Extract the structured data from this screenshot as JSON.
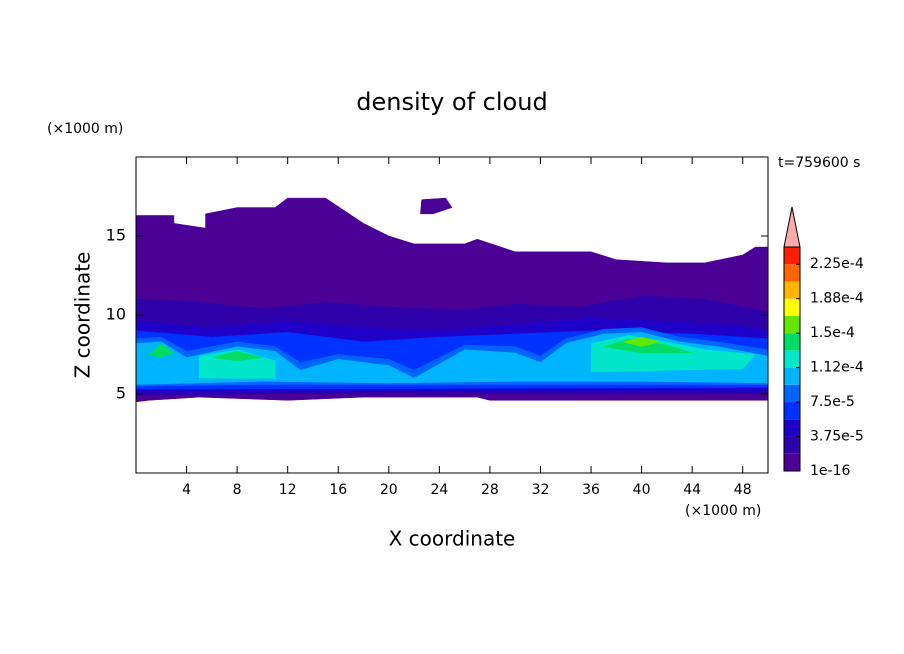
{
  "chart_data": {
    "type": "contour",
    "title": "density of cloud",
    "x_label": "X coordinate",
    "y_label": "Z coordinate",
    "x_unit": "(×1000 m)",
    "y_unit": "(×1000 m)",
    "annotation": "t=759600 s",
    "xlim": [
      0,
      50
    ],
    "ylim": [
      0,
      20
    ],
    "xticks": [
      4,
      8,
      12,
      16,
      20,
      24,
      28,
      32,
      36,
      40,
      44,
      48
    ],
    "yticks": [
      5,
      10,
      15
    ],
    "levels": [
      1e-16,
      1.875e-05,
      3.75e-05,
      5.625e-05,
      7.5e-05,
      9.375e-05,
      0.0001125,
      0.00013125,
      0.00015,
      0.00016875,
      0.0001875,
      0.00020625,
      0.000225,
      0.00024375
    ],
    "colors": [
      "#4b0096",
      "#2d00aa",
      "#1e00c8",
      "#0032ff",
      "#0064ff",
      "#00b4ff",
      "#00e6c8",
      "#00dc64",
      "#64e600",
      "#ffff00",
      "#ffb400",
      "#ff6400",
      "#ff1e00"
    ],
    "extend_color": "#ffaaaa",
    "colorbar_ticks": [
      {
        "value": 1e-16,
        "label": "1e-16"
      },
      {
        "value": 3.75e-05,
        "label": "3.75e-5"
      },
      {
        "value": 7.5e-05,
        "label": "7.5e-5"
      },
      {
        "value": 0.0001125,
        "label": "1.12e-4"
      },
      {
        "value": 0.00015,
        "label": "1.5e-4"
      },
      {
        "value": 0.0001875,
        "label": "1.88e-4"
      },
      {
        "value": 0.000225,
        "label": "2.25e-4"
      }
    ],
    "regions": [
      {
        "value": 1e-16,
        "points": [
          [
            0,
            4.5
          ],
          [
            0,
            16.3
          ],
          [
            3,
            16.3
          ],
          [
            3,
            15.8
          ],
          [
            5.5,
            15.5
          ],
          [
            5.5,
            16.4
          ],
          [
            8,
            16.8
          ],
          [
            11,
            16.8
          ],
          [
            12,
            17.4
          ],
          [
            15,
            17.4
          ],
          [
            18,
            15.8
          ],
          [
            20,
            15
          ],
          [
            22,
            14.5
          ],
          [
            26,
            14.5
          ],
          [
            27,
            14.8
          ],
          [
            30,
            14
          ],
          [
            36,
            14
          ],
          [
            38,
            13.5
          ],
          [
            42,
            13.3
          ],
          [
            45,
            13.3
          ],
          [
            48,
            13.8
          ],
          [
            49,
            14.3
          ],
          [
            50,
            14.3
          ],
          [
            50,
            4.6
          ],
          [
            35,
            4.6
          ],
          [
            28,
            4.6
          ],
          [
            27,
            4.8
          ],
          [
            18,
            4.8
          ],
          [
            12,
            4.6
          ],
          [
            5,
            4.8
          ],
          [
            1,
            4.6
          ]
        ]
      },
      {
        "value": 1e-16,
        "points": [
          [
            22.5,
            16.4
          ],
          [
            22.6,
            17.3
          ],
          [
            24.5,
            17.4
          ],
          [
            25,
            16.8
          ],
          [
            23.5,
            16.4
          ]
        ]
      },
      {
        "value": 1.875e-05,
        "points": [
          [
            0,
            4.9
          ],
          [
            0,
            11
          ],
          [
            5,
            10.8
          ],
          [
            10,
            10.4
          ],
          [
            15,
            10.8
          ],
          [
            20,
            10.5
          ],
          [
            26,
            10.3
          ],
          [
            30,
            10.7
          ],
          [
            35,
            10.5
          ],
          [
            40,
            11.2
          ],
          [
            45,
            11
          ],
          [
            50,
            10.2
          ],
          [
            50,
            5
          ],
          [
            30,
            5
          ],
          [
            20,
            5
          ],
          [
            10,
            5
          ]
        ]
      },
      {
        "value": 3.75e-05,
        "points": [
          [
            0,
            5.1
          ],
          [
            0,
            9.6
          ],
          [
            6,
            9.2
          ],
          [
            12,
            9.6
          ],
          [
            18,
            9.2
          ],
          [
            24,
            9
          ],
          [
            30,
            9.4
          ],
          [
            36,
            9.8
          ],
          [
            42,
            9.6
          ],
          [
            48,
            9.3
          ],
          [
            50,
            9
          ],
          [
            50,
            5.2
          ]
        ]
      },
      {
        "value": 5.625e-05,
        "points": [
          [
            0,
            5.3
          ],
          [
            0,
            9
          ],
          [
            6,
            8.6
          ],
          [
            12,
            8.9
          ],
          [
            18,
            8.3
          ],
          [
            24,
            8.6
          ],
          [
            30,
            8.8
          ],
          [
            36,
            9
          ],
          [
            44,
            8.8
          ],
          [
            50,
            8.5
          ],
          [
            50,
            5.4
          ]
        ]
      },
      {
        "value": 7.5e-05,
        "points": [
          [
            0,
            5.5
          ],
          [
            0,
            8.5
          ],
          [
            2,
            8.6
          ],
          [
            4,
            7.7
          ],
          [
            8,
            8.3
          ],
          [
            11,
            8
          ],
          [
            13,
            7
          ],
          [
            16,
            7.5
          ],
          [
            20,
            7.2
          ],
          [
            22,
            6.5
          ],
          [
            26,
            8.1
          ],
          [
            30,
            8
          ],
          [
            32,
            7.4
          ],
          [
            34,
            8.5
          ],
          [
            37,
            9.1
          ],
          [
            40,
            9.2
          ],
          [
            43,
            8.6
          ],
          [
            46,
            8.3
          ],
          [
            50,
            7.8
          ],
          [
            50,
            5.6
          ],
          [
            30,
            5.6
          ],
          [
            10,
            5.6
          ]
        ]
      },
      {
        "value": 9.375e-05,
        "points": [
          [
            0,
            5.6
          ],
          [
            0,
            8.2
          ],
          [
            2,
            8.3
          ],
          [
            4,
            7.3
          ],
          [
            8,
            8
          ],
          [
            11,
            7.7
          ],
          [
            13,
            6.5
          ],
          [
            16,
            7.2
          ],
          [
            20,
            6.8
          ],
          [
            22,
            6
          ],
          [
            26,
            7.8
          ],
          [
            30,
            7.6
          ],
          [
            32,
            7
          ],
          [
            34,
            8.2
          ],
          [
            37,
            8.8
          ],
          [
            40,
            8.9
          ],
          [
            43,
            8.3
          ],
          [
            46,
            8
          ],
          [
            50,
            7.4
          ],
          [
            50,
            5.7
          ],
          [
            40,
            5.8
          ],
          [
            30,
            5.8
          ],
          [
            20,
            5.7
          ],
          [
            10,
            5.8
          ]
        ]
      },
      {
        "value": 0.0001125,
        "points": [
          [
            5,
            6
          ],
          [
            5,
            7.4
          ],
          [
            8,
            7.8
          ],
          [
            11,
            7.1
          ],
          [
            11,
            6
          ]
        ]
      },
      {
        "value": 0.0001125,
        "points": [
          [
            36,
            6.4
          ],
          [
            36,
            8.2
          ],
          [
            39,
            8.7
          ],
          [
            42,
            8.3
          ],
          [
            45,
            7.8
          ],
          [
            49,
            7.5
          ],
          [
            48,
            6.6
          ]
        ]
      },
      {
        "value": 0.00013125,
        "points": [
          [
            6,
            7.3
          ],
          [
            8,
            7.7
          ],
          [
            10,
            7.3
          ],
          [
            8,
            7.1
          ]
        ]
      },
      {
        "value": 0.00013125,
        "points": [
          [
            37,
            8
          ],
          [
            39,
            8.5
          ],
          [
            42,
            8.1
          ],
          [
            44,
            7.6
          ],
          [
            40,
            7.6
          ]
        ]
      },
      {
        "value": 0.00013125,
        "points": [
          [
            1,
            7.5
          ],
          [
            2,
            8.2
          ],
          [
            3,
            7.6
          ],
          [
            2,
            7.3
          ]
        ]
      },
      {
        "value": 0.00015,
        "points": [
          [
            38.5,
            8.3
          ],
          [
            40,
            8.6
          ],
          [
            41.5,
            8.3
          ],
          [
            40,
            8
          ]
        ]
      }
    ]
  }
}
